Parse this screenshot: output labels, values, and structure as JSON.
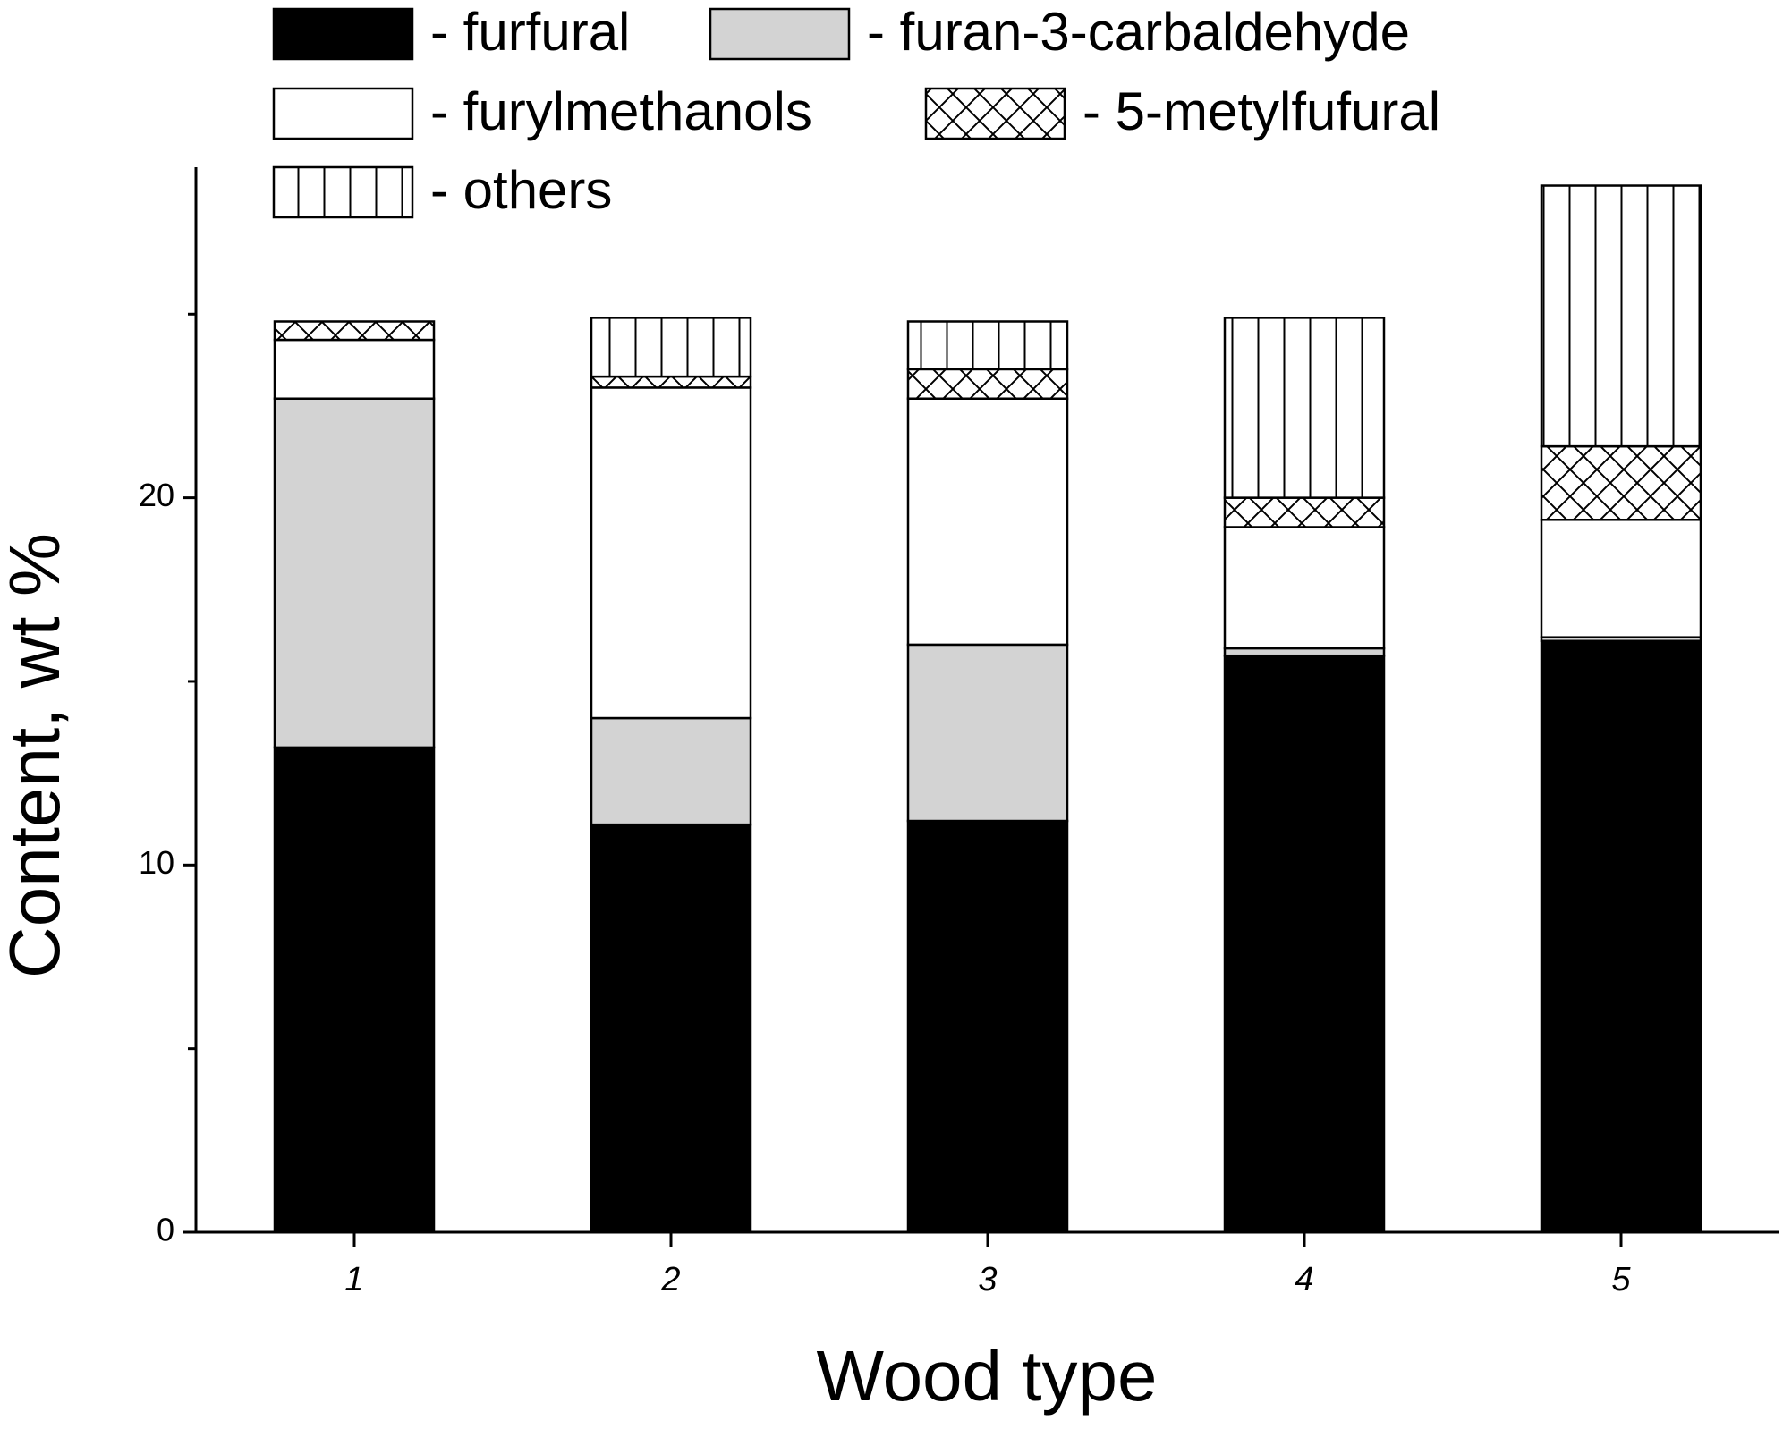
{
  "chart_data": {
    "type": "stacked_bar",
    "xlabel": "Wood type",
    "ylabel": "Content, wt %",
    "categories": [
      "1",
      "2",
      "3",
      "4",
      "5"
    ],
    "series": [
      {
        "name": "- furfural",
        "color": "#000000",
        "pattern": "solid",
        "values": [
          13.2,
          11.1,
          11.2,
          15.7,
          16.1
        ]
      },
      {
        "name": "- furan-3-carbaldehyde",
        "color": "#d3d3d3",
        "pattern": "solid",
        "values": [
          9.5,
          2.9,
          4.8,
          0.2,
          0.1
        ]
      },
      {
        "name": "- furylmethanols",
        "color": "#ffffff",
        "pattern": "solid",
        "values": [
          1.6,
          9.0,
          6.7,
          3.3,
          3.2
        ]
      },
      {
        "name": "- 5-metylfufural",
        "color": "#ffffff",
        "pattern": "crosshatch",
        "values": [
          0.5,
          0.3,
          0.8,
          0.8,
          2.0
        ]
      },
      {
        "name": "- others",
        "color": "#ffffff",
        "pattern": "vertical",
        "values": [
          0,
          1.6,
          1.3,
          4.9,
          7.1
        ]
      }
    ],
    "ylim": [
      0,
      29
    ],
    "yticks": [
      0,
      10,
      20
    ],
    "minor_yticks": [
      5,
      15,
      25
    ]
  }
}
